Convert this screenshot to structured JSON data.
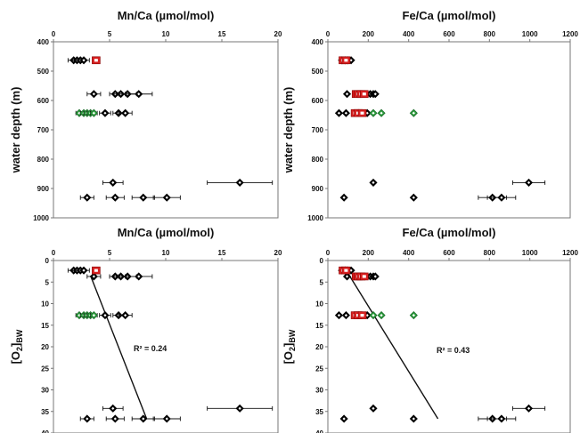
{
  "chart_data": [
    {
      "type": "scatter",
      "title": "Mn/Ca (µmol/mol)",
      "xlabel": "Mn/Ca (µmol/mol)",
      "ylabel": "water depth (m)",
      "xlim": [
        0,
        20
      ],
      "ylim": [
        400,
        1000
      ],
      "y_reversed": true,
      "xticks": [
        "0",
        "5",
        "10",
        "15",
        "20"
      ],
      "yticks": [
        "400",
        "500",
        "600",
        "700",
        "800",
        "900",
        "1000"
      ],
      "series": [
        {
          "color": "#000000",
          "points": [
            {
              "x": 1.8,
              "y": 463,
              "xerr": 0.5
            },
            {
              "x": 2.1,
              "y": 463,
              "xerr": 0.4
            },
            {
              "x": 2.4,
              "y": 463,
              "xerr": 0.4
            },
            {
              "x": 2.7,
              "y": 463,
              "xerr": 0.5
            },
            {
              "x": 3.6,
              "y": 578,
              "xerr": 0.6
            },
            {
              "x": 5.5,
              "y": 578,
              "xerr": 0.5
            },
            {
              "x": 6.0,
              "y": 578,
              "xerr": 0.6
            },
            {
              "x": 6.6,
              "y": 578,
              "xerr": 0.8
            },
            {
              "x": 7.6,
              "y": 578,
              "xerr": 1.2
            },
            {
              "x": 4.6,
              "y": 643,
              "xerr": 0.5
            },
            {
              "x": 5.8,
              "y": 643,
              "xerr": 0.5
            },
            {
              "x": 6.4,
              "y": 643,
              "xerr": 0.6
            },
            {
              "x": 5.3,
              "y": 880,
              "xerr": 0.9
            },
            {
              "x": 16.6,
              "y": 880,
              "xerr": 2.9
            },
            {
              "x": 3.0,
              "y": 931,
              "xerr": 0.6
            },
            {
              "x": 5.5,
              "y": 931,
              "xerr": 0.8
            },
            {
              "x": 8.0,
              "y": 931,
              "xerr": 1.0
            },
            {
              "x": 10.1,
              "y": 931,
              "xerr": 1.2
            }
          ]
        },
        {
          "color": "#2e9e3f",
          "points": [
            {
              "x": 2.3,
              "y": 643,
              "xerr": 0.3
            },
            {
              "x": 2.7,
              "y": 643,
              "xerr": 0.3
            },
            {
              "x": 3.0,
              "y": 643,
              "xerr": 0.3
            },
            {
              "x": 3.3,
              "y": 643,
              "xerr": 0.3
            },
            {
              "x": 3.6,
              "y": 643,
              "xerr": 0.3
            }
          ]
        },
        {
          "color": "#d62020",
          "points": [
            {
              "x": 3.8,
              "y": 463,
              "xerr": 0
            }
          ]
        }
      ]
    },
    {
      "type": "scatter",
      "title": "Fe/Ca (µmol/mol)",
      "xlabel": "Fe/Ca (µmol/mol)",
      "ylabel": "water depth (m)",
      "xlim": [
        0,
        1200
      ],
      "ylim": [
        400,
        1000
      ],
      "y_reversed": true,
      "xticks": [
        "0",
        "200",
        "400",
        "600",
        "800",
        "1000",
        "1200"
      ],
      "yticks": [
        "400",
        "500",
        "600",
        "700",
        "800",
        "900",
        "1000"
      ],
      "series": [
        {
          "color": "#000000",
          "points": [
            {
              "x": 70,
              "y": 463,
              "xerr": 0
            },
            {
              "x": 85,
              "y": 463,
              "xerr": 0
            },
            {
              "x": 100,
              "y": 463,
              "xerr": 0
            },
            {
              "x": 115,
              "y": 463,
              "xerr": 0
            },
            {
              "x": 95,
              "y": 578,
              "xerr": 0
            },
            {
              "x": 210,
              "y": 578,
              "xerr": 0
            },
            {
              "x": 225,
              "y": 578,
              "xerr": 0
            },
            {
              "x": 235,
              "y": 578,
              "xerr": 0
            },
            {
              "x": 55,
              "y": 643,
              "xerr": 0
            },
            {
              "x": 90,
              "y": 643,
              "xerr": 0
            },
            {
              "x": 195,
              "y": 643,
              "xerr": 0
            },
            {
              "x": 225,
              "y": 880,
              "xerr": 0
            },
            {
              "x": 995,
              "y": 880,
              "xerr": 80
            },
            {
              "x": 80,
              "y": 931,
              "xerr": 0
            },
            {
              "x": 425,
              "y": 931,
              "xerr": 0
            },
            {
              "x": 815,
              "y": 931,
              "xerr": 70
            },
            {
              "x": 860,
              "y": 931,
              "xerr": 70
            }
          ]
        },
        {
          "color": "#2e9e3f",
          "points": [
            {
              "x": 225,
              "y": 643,
              "xerr": 0
            },
            {
              "x": 265,
              "y": 643,
              "xerr": 0
            },
            {
              "x": 425,
              "y": 643,
              "xerr": 0
            }
          ]
        },
        {
          "color": "#d62020",
          "points": [
            {
              "x": 75,
              "y": 463,
              "xerr": 0
            },
            {
              "x": 90,
              "y": 463,
              "xerr": 0
            },
            {
              "x": 140,
              "y": 578,
              "xerr": 0
            },
            {
              "x": 150,
              "y": 578,
              "xerr": 0
            },
            {
              "x": 165,
              "y": 578,
              "xerr": 0
            },
            {
              "x": 180,
              "y": 578,
              "xerr": 0
            },
            {
              "x": 135,
              "y": 643,
              "xerr": 0
            },
            {
              "x": 150,
              "y": 643,
              "xerr": 0
            },
            {
              "x": 170,
              "y": 643,
              "xerr": 0
            }
          ]
        }
      ]
    },
    {
      "type": "scatter",
      "title": "Mn/Ca (µmol/mol)",
      "xlabel": "Mn/Ca (µmol/mol)",
      "ylabel": "[O2]BW",
      "xlim": [
        0,
        20
      ],
      "ylim": [
        0,
        40
      ],
      "y_reversed": true,
      "xticks": [
        "0",
        "5",
        "10",
        "15",
        "20"
      ],
      "yticks": [
        "0",
        "5",
        "10",
        "15",
        "20",
        "25",
        "30",
        "35",
        "40"
      ],
      "annotation": "R² = 0.24",
      "trendline": {
        "x1": 3.3,
        "y1": 3.5,
        "x2": 8.3,
        "y2": 36.7
      },
      "series": [
        {
          "color": "#000000",
          "points": [
            {
              "x": 1.8,
              "y": 2.3,
              "xerr": 0.5
            },
            {
              "x": 2.1,
              "y": 2.3,
              "xerr": 0.4
            },
            {
              "x": 2.4,
              "y": 2.3,
              "xerr": 0.4
            },
            {
              "x": 2.7,
              "y": 2.3,
              "xerr": 0.5
            },
            {
              "x": 3.6,
              "y": 3.7,
              "xerr": 0.6
            },
            {
              "x": 5.5,
              "y": 3.7,
              "xerr": 0.5
            },
            {
              "x": 6.0,
              "y": 3.7,
              "xerr": 0.6
            },
            {
              "x": 6.6,
              "y": 3.7,
              "xerr": 0.8
            },
            {
              "x": 7.6,
              "y": 3.7,
              "xerr": 1.2
            },
            {
              "x": 4.6,
              "y": 12.7,
              "xerr": 0.5
            },
            {
              "x": 5.8,
              "y": 12.7,
              "xerr": 0.5
            },
            {
              "x": 6.4,
              "y": 12.7,
              "xerr": 0.6
            },
            {
              "x": 5.3,
              "y": 34.3,
              "xerr": 0.9
            },
            {
              "x": 16.6,
              "y": 34.3,
              "xerr": 2.9
            },
            {
              "x": 3.0,
              "y": 36.7,
              "xerr": 0.6
            },
            {
              "x": 5.5,
              "y": 36.7,
              "xerr": 0.8
            },
            {
              "x": 8.0,
              "y": 36.7,
              "xerr": 1.0
            },
            {
              "x": 10.1,
              "y": 36.7,
              "xerr": 1.2
            }
          ]
        },
        {
          "color": "#2e9e3f",
          "points": [
            {
              "x": 2.3,
              "y": 12.7,
              "xerr": 0.3
            },
            {
              "x": 2.7,
              "y": 12.7,
              "xerr": 0.3
            },
            {
              "x": 3.0,
              "y": 12.7,
              "xerr": 0.3
            },
            {
              "x": 3.3,
              "y": 12.7,
              "xerr": 0.3
            },
            {
              "x": 3.6,
              "y": 12.7,
              "xerr": 0.3
            }
          ]
        },
        {
          "color": "#d62020",
          "points": [
            {
              "x": 3.8,
              "y": 2.3,
              "xerr": 0
            }
          ]
        }
      ]
    },
    {
      "type": "scatter",
      "title": "Fe/Ca (µmol/mol)",
      "xlabel": "Fe/Ca (µmol/mol)",
      "ylabel": "[O2]BW",
      "xlim": [
        0,
        1200
      ],
      "ylim": [
        0,
        40
      ],
      "y_reversed": true,
      "xticks": [
        "0",
        "200",
        "400",
        "600",
        "800",
        "1000",
        "1200"
      ],
      "yticks": [
        "0",
        "5",
        "10",
        "15",
        "20",
        "25",
        "30",
        "35",
        "40"
      ],
      "annotation": "R² = 0.43",
      "trendline": {
        "x1": 100,
        "y1": 3.0,
        "x2": 545,
        "y2": 36.7
      },
      "series": [
        {
          "color": "#000000",
          "points": [
            {
              "x": 70,
              "y": 2.3,
              "xerr": 0
            },
            {
              "x": 85,
              "y": 2.3,
              "xerr": 0
            },
            {
              "x": 100,
              "y": 2.3,
              "xerr": 0
            },
            {
              "x": 115,
              "y": 2.3,
              "xerr": 0
            },
            {
              "x": 95,
              "y": 3.7,
              "xerr": 0
            },
            {
              "x": 210,
              "y": 3.7,
              "xerr": 0
            },
            {
              "x": 225,
              "y": 3.7,
              "xerr": 0
            },
            {
              "x": 235,
              "y": 3.7,
              "xerr": 0
            },
            {
              "x": 55,
              "y": 12.7,
              "xerr": 0
            },
            {
              "x": 90,
              "y": 12.7,
              "xerr": 0
            },
            {
              "x": 195,
              "y": 12.7,
              "xerr": 0
            },
            {
              "x": 225,
              "y": 34.3,
              "xerr": 0
            },
            {
              "x": 995,
              "y": 34.3,
              "xerr": 80
            },
            {
              "x": 80,
              "y": 36.7,
              "xerr": 0
            },
            {
              "x": 425,
              "y": 36.7,
              "xerr": 0
            },
            {
              "x": 815,
              "y": 36.7,
              "xerr": 70
            },
            {
              "x": 860,
              "y": 36.7,
              "xerr": 70
            }
          ]
        },
        {
          "color": "#2e9e3f",
          "points": [
            {
              "x": 225,
              "y": 12.7,
              "xerr": 0
            },
            {
              "x": 265,
              "y": 12.7,
              "xerr": 0
            },
            {
              "x": 425,
              "y": 12.7,
              "xerr": 0
            }
          ]
        },
        {
          "color": "#d62020",
          "points": [
            {
              "x": 75,
              "y": 2.3,
              "xerr": 0
            },
            {
              "x": 90,
              "y": 2.3,
              "xerr": 0
            },
            {
              "x": 140,
              "y": 3.7,
              "xerr": 0
            },
            {
              "x": 150,
              "y": 3.7,
              "xerr": 0
            },
            {
              "x": 165,
              "y": 3.7,
              "xerr": 0
            },
            {
              "x": 180,
              "y": 3.7,
              "xerr": 0
            },
            {
              "x": 135,
              "y": 12.7,
              "xerr": 0
            },
            {
              "x": 150,
              "y": 12.7,
              "xerr": 0
            },
            {
              "x": 170,
              "y": 12.7,
              "xerr": 0
            }
          ]
        }
      ]
    }
  ]
}
